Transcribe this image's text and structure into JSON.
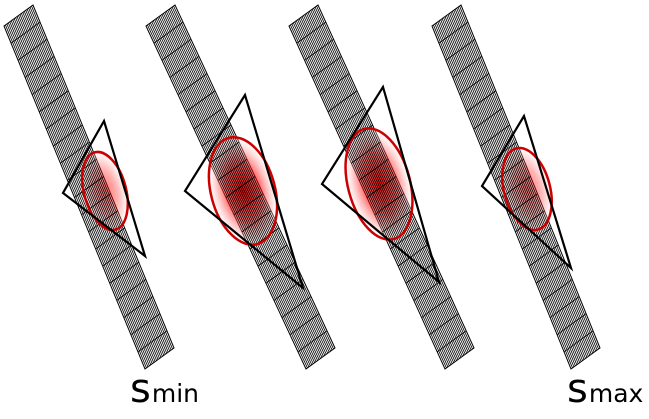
{
  "labels": {
    "min": {
      "main": "s",
      "sub": "min"
    },
    "max": {
      "main": "s",
      "sub": "max"
    }
  },
  "colors": {
    "background": "#ffffff",
    "grid": "#000000",
    "triangle": "#000000",
    "ellipse_outline": "#cc0000",
    "gaussian_center": "#ff0000",
    "gaussian_edge": "#ffffff"
  },
  "slices": [
    {
      "id": "slice-1",
      "intensity": 0.55
    },
    {
      "id": "slice-2",
      "intensity": 1.0
    },
    {
      "id": "slice-3",
      "intensity": 0.95
    },
    {
      "id": "slice-4",
      "intensity": 0.55
    }
  ]
}
